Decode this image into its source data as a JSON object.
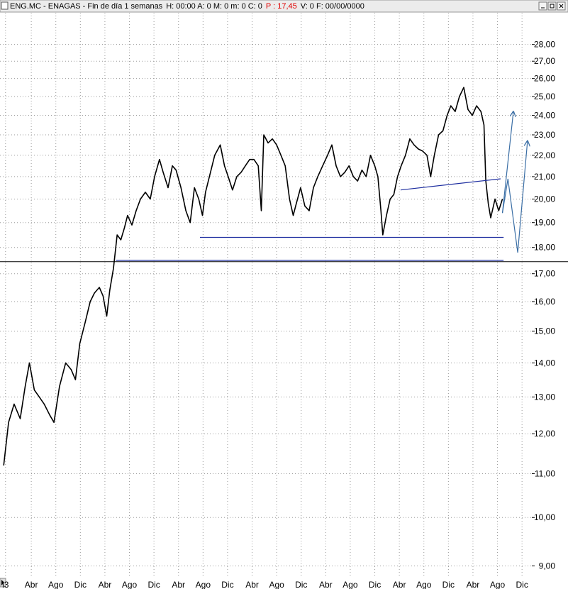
{
  "chart_data": {
    "type": "line",
    "title": "ENG.MC - ENAGAS - Fin de día 1 semanas",
    "info": "H: 00:00  A: 0  M: 0  m: 0  C: 0",
    "price": "P : 17,45",
    "info2": "V: 0  F: 00/00/0000",
    "log_y": true,
    "grid": true,
    "xlim": [
      -2.1,
      84.6
    ],
    "ylim": [
      8.8,
      30
    ],
    "xticks": [
      {
        "value": -1.2,
        "label": "l3"
      },
      {
        "value": 3,
        "label": "Abr"
      },
      {
        "value": 7,
        "label": "Ago"
      },
      {
        "value": 11,
        "label": "Dic"
      },
      {
        "value": 15,
        "label": "Abr"
      },
      {
        "value": 19,
        "label": "Ago"
      },
      {
        "value": 23,
        "label": "Dic"
      },
      {
        "value": 27,
        "label": "Abr"
      },
      {
        "value": 31,
        "label": "Ago"
      },
      {
        "value": 35,
        "label": "Dic"
      },
      {
        "value": 39,
        "label": "Abr"
      },
      {
        "value": 43,
        "label": "Ago"
      },
      {
        "value": 47,
        "label": "Dic"
      },
      {
        "value": 51,
        "label": "Abr"
      },
      {
        "value": 55,
        "label": "Ago"
      },
      {
        "value": 59,
        "label": "Dic"
      },
      {
        "value": 63,
        "label": "Abr"
      },
      {
        "value": 67,
        "label": "Ago"
      },
      {
        "value": 71,
        "label": "Dic"
      },
      {
        "value": 75,
        "label": "Abr"
      },
      {
        "value": 79,
        "label": "Ago"
      },
      {
        "value": 83,
        "label": "Dic"
      }
    ],
    "yticks": [
      {
        "value": 9,
        "label": "9,00"
      },
      {
        "value": 10,
        "label": "10,00"
      },
      {
        "value": 11,
        "label": "11,00"
      },
      {
        "value": 12,
        "label": "12,00"
      },
      {
        "value": 13,
        "label": "13,00"
      },
      {
        "value": 14,
        "label": "14,00"
      },
      {
        "value": 15,
        "label": "15,00"
      },
      {
        "value": 16,
        "label": "16,00"
      },
      {
        "value": 17,
        "label": "17,00"
      },
      {
        "value": 18,
        "label": "18,00"
      },
      {
        "value": 19,
        "label": "19,00"
      },
      {
        "value": 20,
        "label": "20,00"
      },
      {
        "value": 21,
        "label": "21,00"
      },
      {
        "value": 22,
        "label": "22,00"
      },
      {
        "value": 23,
        "label": "23,00"
      },
      {
        "value": 24,
        "label": "24,00"
      },
      {
        "value": 25,
        "label": "25,00"
      },
      {
        "value": 26,
        "label": "26,00"
      },
      {
        "value": 27,
        "label": "27,00"
      },
      {
        "value": 28,
        "label": "28,00"
      }
    ],
    "x": [
      -1.5,
      -0.7,
      0.2,
      1.2,
      2.0,
      2.7,
      3.5,
      4.3,
      5.1,
      6.0,
      6.7,
      7.6,
      8.6,
      9.5,
      10.2,
      10.9,
      11.8,
      12.6,
      13.3,
      14.1,
      14.7,
      15.3,
      15.8,
      16.4,
      17.0,
      17.6,
      18.2,
      18.7,
      19.4,
      20.1,
      20.8,
      21.6,
      22.4,
      23.1,
      23.9,
      24.5,
      25.3,
      26.0,
      26.6,
      27.4,
      28.2,
      28.9,
      29.6,
      30.3,
      30.9,
      31.4,
      32.3,
      32.9,
      33.8,
      34.5,
      35.1,
      35.8,
      36.5,
      37.2,
      37.9,
      38.6,
      39.3,
      40.0,
      40.5,
      40.9,
      41.6,
      42.3,
      43.0,
      43.7,
      44.4,
      45.1,
      45.7,
      46.2,
      46.9,
      47.6,
      48.3,
      49.0,
      49.7,
      50.5,
      51.3,
      52.0,
      52.7,
      53.4,
      54.1,
      54.8,
      55.5,
      56.2,
      56.9,
      57.6,
      58.3,
      59.0,
      59.5,
      60.0,
      60.3,
      60.9,
      61.5,
      62.1,
      62.7,
      63.3,
      64.0,
      64.7,
      65.4,
      66.1,
      66.8,
      67.5,
      68.1,
      68.7,
      69.4,
      70.1,
      70.8,
      71.4,
      72.1,
      72.8,
      73.5,
      74.2,
      74.9,
      75.6,
      76.3,
      76.8,
      77.1,
      77.5,
      77.9,
      78.6,
      79.2,
      79.8
    ],
    "series": [
      {
        "color": "#000000",
        "values": [
          11.2,
          12.3,
          12.8,
          12.4,
          13.3,
          14.0,
          13.2,
          13.0,
          12.8,
          12.5,
          12.3,
          13.3,
          14.0,
          13.8,
          13.5,
          14.6,
          15.3,
          16.0,
          16.3,
          16.5,
          16.2,
          15.5,
          16.4,
          17.2,
          18.5,
          18.3,
          18.8,
          19.3,
          18.9,
          19.5,
          20.0,
          20.3,
          20.0,
          21.0,
          21.8,
          21.2,
          20.5,
          21.5,
          21.3,
          20.5,
          19.5,
          19.0,
          20.5,
          20.0,
          19.3,
          20.3,
          21.3,
          22.0,
          22.5,
          21.5,
          21.0,
          20.4,
          21.0,
          21.2,
          21.5,
          21.8,
          21.8,
          21.5,
          19.5,
          23.0,
          22.6,
          22.8,
          22.5,
          22.0,
          21.5,
          20.0,
          19.3,
          19.8,
          20.5,
          19.7,
          19.5,
          20.5,
          21.0,
          21.5,
          22.0,
          22.5,
          21.5,
          21.0,
          21.2,
          21.5,
          21.0,
          20.8,
          21.3,
          21.0,
          22.0,
          21.5,
          21.0,
          19.5,
          18.5,
          19.3,
          20.0,
          20.2,
          21.0,
          21.5,
          22.0,
          22.8,
          22.5,
          22.3,
          22.2,
          22.0,
          21.0,
          22.0,
          23.0,
          23.2,
          24.0,
          24.5,
          24.2,
          25.0,
          25.5,
          24.3,
          24.0,
          24.5,
          24.2,
          23.5,
          20.8,
          19.8,
          19.2,
          20.0,
          19.5,
          20.0
        ]
      }
    ],
    "hlines": [
      {
        "value": 17.45,
        "color": "#000000"
      }
    ],
    "lines": [
      {
        "color": "#1f2fa0",
        "x": [
          16.8,
          80.0
        ],
        "y": [
          17.5,
          17.5
        ]
      },
      {
        "color": "#1f2fa0",
        "x": [
          30.5,
          80.0
        ],
        "y": [
          18.4,
          18.4
        ]
      },
      {
        "color": "#1f2fa0",
        "x": [
          63.2,
          79.5
        ],
        "y": [
          20.4,
          20.9
        ]
      },
      {
        "color": "#3a6ea5",
        "x": [
          79.8,
          81.6
        ],
        "y": [
          19.4,
          24.2
        ],
        "arrow": true
      },
      {
        "color": "#3a6ea5",
        "x": [
          79.8,
          80.7,
          82.3,
          83.9
        ],
        "y": [
          19.4,
          20.9,
          17.8,
          22.7
        ],
        "arrow": true
      }
    ]
  }
}
